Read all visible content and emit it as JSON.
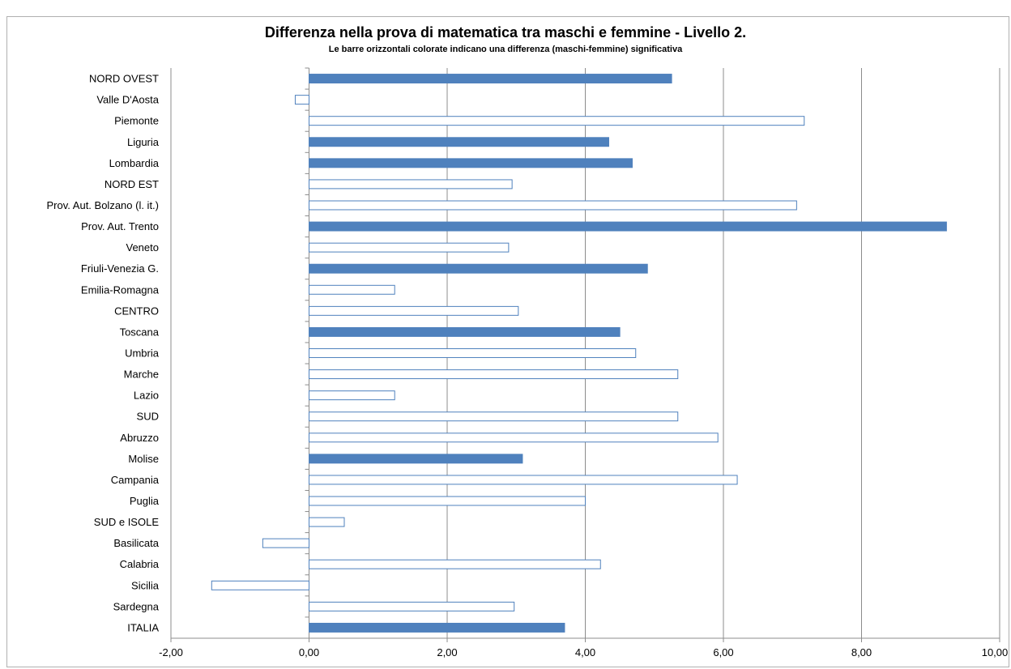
{
  "chart_data": {
    "type": "bar",
    "orientation": "horizontal",
    "title": "Differenza nella prova di matematica tra maschi e femmine - Livello 2.",
    "subtitle": "Le barre orizzontali colorate indicano una differenza (maschi-femmine) significativa",
    "xlim": [
      -2,
      10
    ],
    "x_ticks": [
      -2,
      0,
      2,
      4,
      6,
      8,
      10
    ],
    "x_tick_labels": [
      "-2,00",
      "0,00",
      "2,00",
      "4,00",
      "6,00",
      "8,00",
      "10,00"
    ],
    "grid": true,
    "bar_color": "#4f81bd",
    "categories": [
      "NORD OVEST",
      "Valle D'Aosta",
      "Piemonte",
      "Liguria",
      "Lombardia",
      "NORD EST",
      "Prov. Aut. Bolzano (l. it.)",
      "Prov. Aut. Trento",
      "Veneto",
      "Friuli-Venezia G.",
      "Emilia-Romagna",
      "CENTRO",
      "Toscana",
      "Umbria",
      "Marche",
      "Lazio",
      "SUD",
      "Abruzzo",
      "Molise",
      "Campania",
      "Puglia",
      "SUD e ISOLE",
      "Basilicata",
      "Calabria",
      "Sicilia",
      "Sardegna",
      "ITALIA"
    ],
    "values": [
      5.25,
      -0.2,
      7.17,
      4.34,
      4.68,
      2.94,
      7.06,
      9.23,
      2.89,
      4.9,
      1.24,
      3.03,
      4.5,
      4.73,
      5.34,
      1.24,
      5.34,
      5.92,
      3.09,
      6.2,
      4.0,
      0.51,
      -0.67,
      4.22,
      -1.41,
      2.97,
      3.7
    ],
    "significant": [
      true,
      false,
      false,
      true,
      true,
      false,
      false,
      true,
      false,
      true,
      false,
      false,
      true,
      false,
      false,
      false,
      false,
      false,
      true,
      false,
      false,
      false,
      false,
      false,
      false,
      false,
      true
    ]
  }
}
